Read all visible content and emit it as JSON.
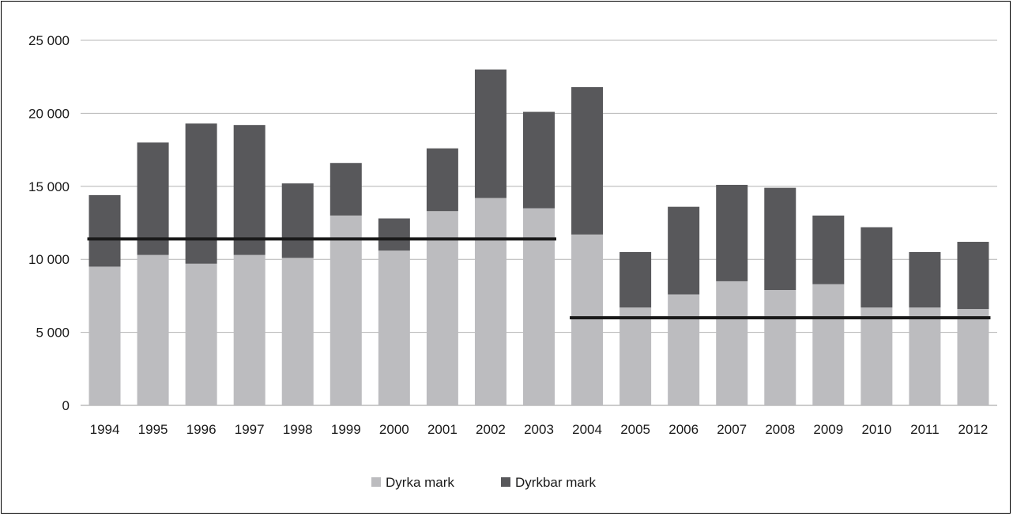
{
  "chart_data": {
    "type": "bar",
    "stacked": true,
    "categories": [
      "1994",
      "1995",
      "1996",
      "1997",
      "1998",
      "1999",
      "2000",
      "2001",
      "2002",
      "2003",
      "2004",
      "2005",
      "2006",
      "2007",
      "2008",
      "2009",
      "2010",
      "2011",
      "2012"
    ],
    "series": [
      {
        "name": "Dyrka mark",
        "color": "#bcbcbf",
        "values": [
          9500,
          10300,
          9700,
          10300,
          10100,
          13000,
          10600,
          13300,
          14200,
          13500,
          11700,
          6700,
          7600,
          8500,
          7900,
          8300,
          6700,
          6700,
          6600
        ]
      },
      {
        "name": "Dyrkbar mark",
        "color": "#58585b",
        "values": [
          4900,
          7700,
          9600,
          8900,
          5100,
          3600,
          2200,
          4300,
          8800,
          6600,
          10100,
          3800,
          6000,
          6600,
          7000,
          4700,
          5500,
          3800,
          4600
        ]
      }
    ],
    "reference_lines": [
      {
        "from": "1994",
        "to": "2003",
        "value": 11400,
        "color": "#1a1a1a"
      },
      {
        "from": "2004",
        "to": "2012",
        "value": 6000,
        "color": "#1a1a1a"
      }
    ],
    "y_ticks": [
      "0",
      "5 000",
      "10 000",
      "15 000",
      "20 000",
      "25 000"
    ],
    "ylim": [
      0,
      25000
    ],
    "grid": true,
    "legend_position": "bottom"
  }
}
